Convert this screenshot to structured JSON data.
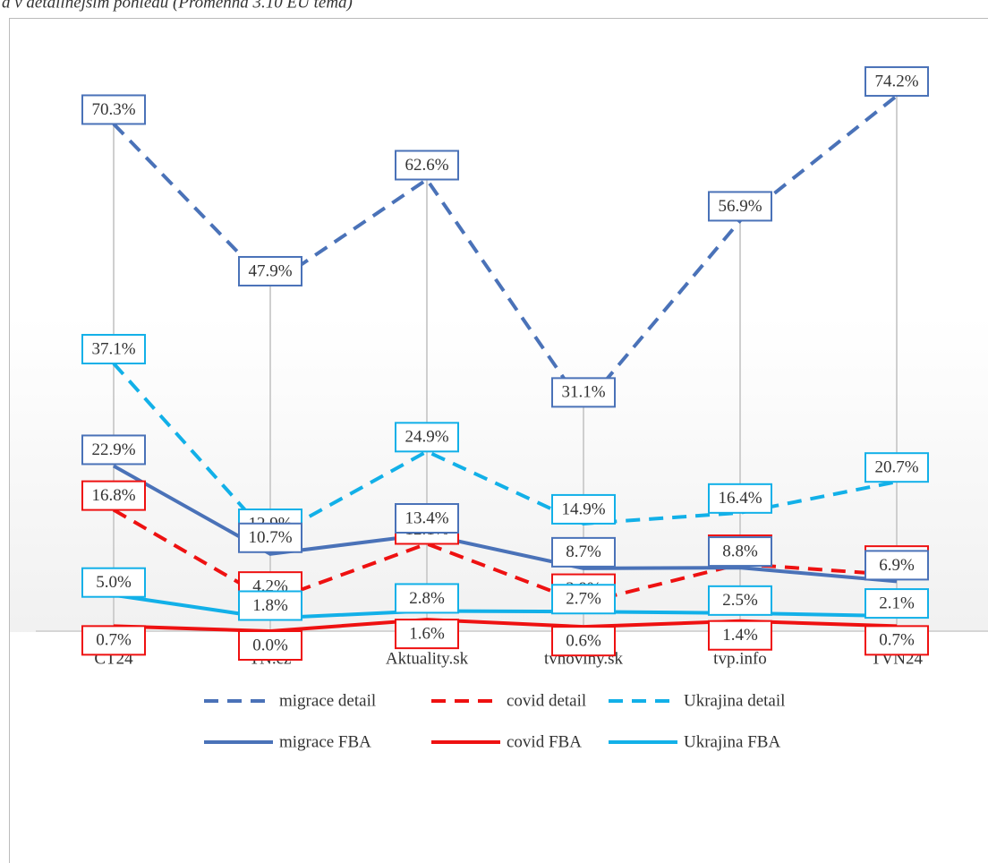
{
  "chart_data": {
    "type": "line",
    "title": "a v detailnějším pohledu (Proměnná 3.10 EU téma)",
    "categories": [
      "ČT24",
      "TN.cz",
      "Aktuality.sk",
      "tvnoviny.sk",
      "tvp.info",
      "TVN24"
    ],
    "ylim": [
      0,
      85
    ],
    "legend": "bottom",
    "series": [
      {
        "name": "migrace detail",
        "color": "#4a72b8",
        "dashed": true,
        "values": [
          70.3,
          47.9,
          62.6,
          31.1,
          56.9,
          74.2
        ],
        "value_labels": [
          "70.3%",
          "47.9%",
          "62.6%",
          "31.1%",
          "56.9%",
          "74.2%"
        ]
      },
      {
        "name": "covid detail",
        "color": "#ee1111",
        "dashed": true,
        "values": [
          16.8,
          4.2,
          12.1,
          3.9,
          9.3,
          7.8
        ],
        "value_labels": [
          "16.8%",
          "4.2%",
          "12.1%",
          "3.9%",
          "9.3%",
          "7.8%"
        ]
      },
      {
        "name": "Ukrajina detail",
        "color": "#12b0e8",
        "dashed": true,
        "values": [
          37.1,
          12.9,
          24.9,
          14.9,
          16.4,
          20.7
        ],
        "value_labels": [
          "37.1%",
          "12.9%",
          "24.9%",
          "14.9%",
          "16.4%",
          "20.7%"
        ]
      },
      {
        "name": "migrace FBA",
        "color": "#4a72b8",
        "dashed": false,
        "values": [
          22.9,
          10.7,
          13.4,
          8.7,
          8.8,
          6.9
        ],
        "value_labels": [
          "22.9%",
          "10.7%",
          "13.4%",
          "8.7%",
          "8.8%",
          "6.9%"
        ]
      },
      {
        "name": "covid FBA",
        "color": "#ee1111",
        "dashed": false,
        "values": [
          0.7,
          0.0,
          1.6,
          0.6,
          1.4,
          0.7
        ],
        "value_labels": [
          "0.7%",
          "0.0%",
          "1.6%",
          "0.6%",
          "1.4%",
          "0.7%"
        ]
      },
      {
        "name": "Ukrajina FBA",
        "color": "#12b0e8",
        "dashed": false,
        "values": [
          5.0,
          1.8,
          2.8,
          2.7,
          2.5,
          2.1
        ],
        "value_labels": [
          "5.0%",
          "1.8%",
          "2.8%",
          "2.7%",
          "2.5%",
          "2.1%"
        ]
      }
    ]
  }
}
